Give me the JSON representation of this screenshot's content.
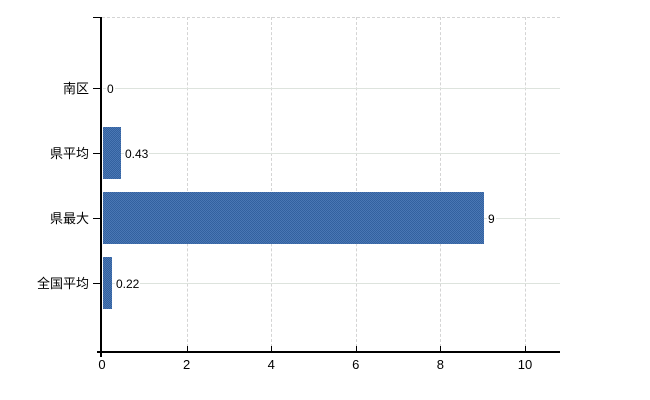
{
  "window": {
    "background_color": "#ffffff"
  },
  "chart_data": {
    "type": "bar",
    "orientation": "horizontal",
    "title": "",
    "xlabel": "",
    "ylabel": "",
    "categories": [
      "南区",
      "県平均",
      "県最大",
      "全国平均"
    ],
    "values": [
      0,
      0.43,
      9,
      0.22
    ],
    "data_labels": [
      "0",
      "0.43",
      "9",
      "0.22"
    ],
    "x_tick_labels": [
      "0",
      "2",
      "4",
      "6",
      "8",
      "10"
    ],
    "x_tick_values": [
      0,
      2,
      4,
      6,
      8,
      10
    ],
    "xlim": [
      0,
      10.83
    ],
    "grid": true,
    "grid_horizontal_style": "solid",
    "grid_vertical_style": "dashed",
    "legend_position": "none",
    "colors": {
      "bar": "#3b6ca8",
      "bar_dither_dark": "#33619f",
      "bar_dither_light": "#4a77b4",
      "axis": "#000000",
      "grid_horizontal": "#dde3dd",
      "grid_vertical": "#d4d4d4",
      "text": "#000000",
      "background": "#ffffff"
    }
  }
}
